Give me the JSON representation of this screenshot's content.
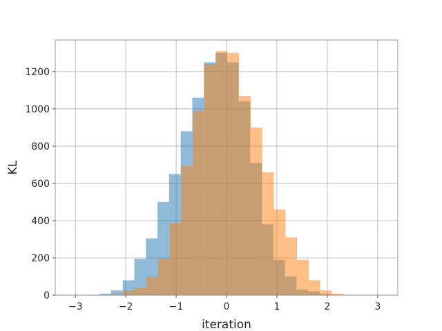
{
  "chart_data": {
    "type": "bar",
    "subtype": "overlapping-histogram",
    "title": "",
    "xlabel": "iteration",
    "ylabel": "KL",
    "xlim": [
      -3.4,
      3.4
    ],
    "ylim": [
      0,
      1370
    ],
    "xticks": [
      -3,
      -2,
      -1,
      0,
      1,
      2,
      3
    ],
    "xtick_labels": [
      "−3",
      "−2",
      "−1",
      "0",
      "1",
      "2",
      "3"
    ],
    "yticks": [
      0,
      200,
      400,
      600,
      800,
      1000,
      1200
    ],
    "ytick_labels": [
      "0",
      "200",
      "400",
      "600",
      "800",
      "1000",
      "1200"
    ],
    "grid": true,
    "series": [
      {
        "color": "#1f77b4",
        "opacity": 0.5,
        "bin_edges": [
          -2.75,
          -2.52,
          -2.29,
          -2.06,
          -1.83,
          -1.6,
          -1.37,
          -1.14,
          -0.91,
          -0.68,
          -0.45,
          -0.22,
          0.01,
          0.24,
          0.47,
          0.7,
          0.93,
          1.16,
          1.39,
          1.62,
          1.85,
          2.08,
          2.31
        ],
        "counts": [
          2,
          8,
          25,
          80,
          195,
          305,
          500,
          650,
          880,
          1060,
          1250,
          1300,
          1250,
          1040,
          710,
          380,
          190,
          100,
          30,
          20,
          6,
          2
        ]
      },
      {
        "color": "#ff7f0e",
        "opacity": 0.5,
        "bin_edges": [
          -2.28,
          -2.05,
          -1.82,
          -1.59,
          -1.36,
          -1.13,
          -0.9,
          -0.67,
          -0.44,
          -0.21,
          0.02,
          0.25,
          0.48,
          0.71,
          0.94,
          1.17,
          1.4,
          1.63,
          1.86,
          2.09,
          2.32
        ],
        "counts": [
          5,
          25,
          40,
          100,
          195,
          385,
          695,
          990,
          1240,
          1310,
          1300,
          1070,
          900,
          660,
          460,
          310,
          190,
          80,
          25,
          8
        ]
      }
    ]
  }
}
